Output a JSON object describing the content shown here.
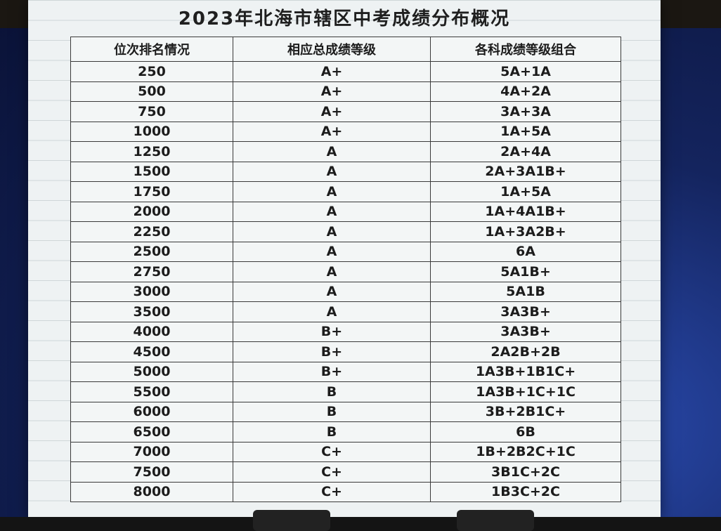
{
  "title": "2023年北海市辖区中考成绩分布概况",
  "table": {
    "headers": [
      "位次排名情况",
      "相应总成绩等级",
      "各科成绩等级组合"
    ],
    "rows": [
      [
        250,
        "A+",
        "5A+1A"
      ],
      [
        500,
        "A+",
        "4A+2A"
      ],
      [
        750,
        "A+",
        "3A+3A"
      ],
      [
        1000,
        "A+",
        "1A+5A"
      ],
      [
        1250,
        "A",
        "2A+4A"
      ],
      [
        1500,
        "A",
        "2A+3A1B+"
      ],
      [
        1750,
        "A",
        "1A+5A"
      ],
      [
        2000,
        "A",
        "1A+4A1B+"
      ],
      [
        2250,
        "A",
        "1A+3A2B+"
      ],
      [
        2500,
        "A",
        "6A"
      ],
      [
        2750,
        "A",
        "5A1B+"
      ],
      [
        3000,
        "A",
        "5A1B"
      ],
      [
        3500,
        "A",
        "3A3B+"
      ],
      [
        4000,
        "B+",
        "3A3B+"
      ],
      [
        4500,
        "B+",
        "2A2B+2B"
      ],
      [
        5000,
        "B+",
        "1A3B+1B1C+"
      ],
      [
        5500,
        "B",
        "1A3B+1C+1C"
      ],
      [
        6000,
        "B",
        "3B+2B1C+"
      ],
      [
        6500,
        "B",
        "6B"
      ],
      [
        7000,
        "C+",
        "1B+2B2C+1C"
      ],
      [
        7500,
        "C+",
        "3B1C+2C"
      ],
      [
        8000,
        "C+",
        "1B3C+2C"
      ]
    ]
  }
}
